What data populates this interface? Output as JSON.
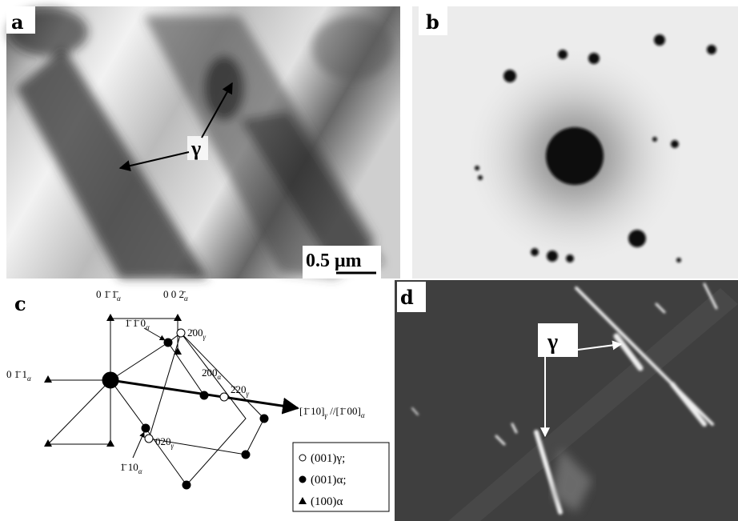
{
  "panels": [
    {
      "label": "a",
      "annotations": [
        "γ",
        "0.5 μm"
      ]
    },
    {
      "label": "b"
    },
    {
      "label": "c",
      "nodes": [
        {
          "text": "0 1̄ 1̄",
          "sub": "α"
        },
        {
          "text": "0 0 2̄",
          "sub": "α"
        },
        {
          "text": "0 1̄ 1",
          "sub": "α"
        },
        {
          "text": "1̄ 1̄ 0",
          "sub": "α"
        },
        {
          "text": "2̄00",
          "sub": "γ"
        },
        {
          "text": "2̄00",
          "sub": "α"
        },
        {
          "text": "2̄20",
          "sub": "γ"
        },
        {
          "text": "1̄ 10",
          "sub": "α"
        },
        {
          "text": "020",
          "sub": "γ"
        }
      ],
      "direction": {
        "text": "[1̄ 10]",
        "sub": "γ",
        "text2": " //[1̄ 00]",
        "sub2": "α"
      },
      "legend": [
        "(001)γ;",
        "(001)α;",
        "(100)α"
      ]
    },
    {
      "label": "d",
      "annotations": [
        "γ"
      ]
    }
  ]
}
